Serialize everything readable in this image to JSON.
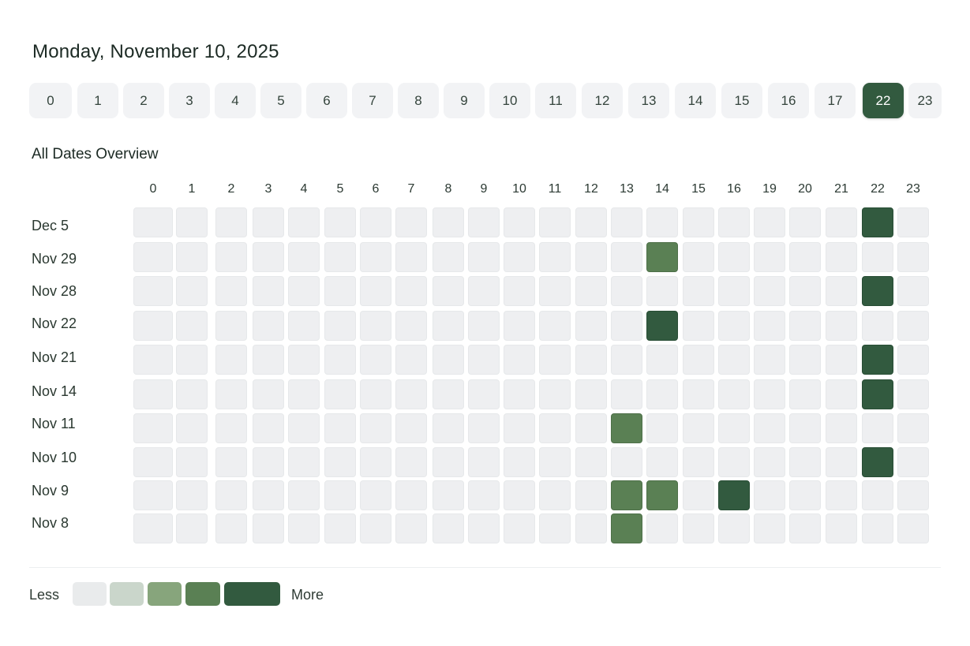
{
  "header": {
    "date_title": "Monday, November 10, 2025"
  },
  "hour_tabs": {
    "items": [
      "0",
      "1",
      "2",
      "3",
      "4",
      "5",
      "6",
      "7",
      "8",
      "9",
      "10",
      "11",
      "12",
      "13",
      "14",
      "15",
      "16",
      "17",
      "22",
      "23"
    ],
    "selected": "22"
  },
  "overview": {
    "title": "All Dates Overview",
    "columns": [
      "0",
      "1",
      "2",
      "3",
      "4",
      "5",
      "6",
      "7",
      "8",
      "9",
      "10",
      "11",
      "12",
      "13",
      "14",
      "15",
      "16",
      "19",
      "20",
      "21",
      "22",
      "23"
    ],
    "rows": [
      {
        "label": "Dec 5",
        "active": {
          "22": 4
        }
      },
      {
        "label": "Nov 29",
        "active": {
          "14": 3
        }
      },
      {
        "label": "Nov 28",
        "active": {
          "22": 4
        }
      },
      {
        "label": "Nov 22",
        "active": {
          "14": 4
        }
      },
      {
        "label": "Nov 21",
        "active": {
          "22": 4
        }
      },
      {
        "label": "Nov 14",
        "active": {
          "22": 4
        }
      },
      {
        "label": "Nov 11",
        "active": {
          "13": 3
        }
      },
      {
        "label": "Nov 10",
        "active": {
          "22": 4
        }
      },
      {
        "label": "Nov 9",
        "active": {
          "13": 3,
          "14": 3,
          "16": 4
        }
      },
      {
        "label": "Nov 8",
        "active": {
          "13": 3
        }
      }
    ]
  },
  "legend": {
    "less_label": "Less",
    "more_label": "More",
    "levels": [
      "#e9ebec",
      "#cad6cb",
      "#87a57c",
      "#5a8054",
      "#325a3f"
    ]
  }
}
